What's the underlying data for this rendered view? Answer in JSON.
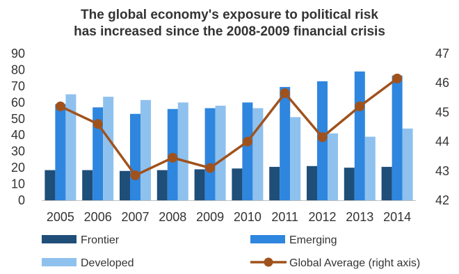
{
  "chart_data": {
    "type": "bar",
    "title_lines": [
      "The global economy's exposure to political risk",
      "has increased since the 2008-2009 financial crisis"
    ],
    "categories": [
      "2005",
      "2006",
      "2007",
      "2008",
      "2009",
      "2010",
      "2011",
      "2012",
      "2013",
      "2014"
    ],
    "ylim": [
      0,
      90
    ],
    "y_ticks": [
      "0",
      "10",
      "20",
      "30",
      "40",
      "50",
      "60",
      "70",
      "80",
      "90"
    ],
    "y2lim": [
      42,
      47
    ],
    "y2_ticks": [
      "42",
      "43",
      "44",
      "45",
      "46",
      "47"
    ],
    "grid": false,
    "legend_position": "bottom",
    "series": [
      {
        "name": "Frontier",
        "type": "bar",
        "color": "#1f4e79",
        "values": [
          18.5,
          18.5,
          18,
          18.5,
          19,
          19.5,
          20.5,
          21,
          20,
          20.5
        ]
      },
      {
        "name": "Emerging",
        "type": "bar",
        "color": "#2e86de",
        "values": [
          59,
          57,
          53,
          56,
          56.5,
          60,
          69.5,
          73,
          79,
          76.5
        ]
      },
      {
        "name": "Developed",
        "type": "bar",
        "color": "#8fc1ee",
        "values": [
          65,
          63.5,
          61.5,
          60,
          58,
          56.5,
          51,
          41,
          39,
          44
        ]
      },
      {
        "name": "Global Average (right axis)",
        "type": "line",
        "axis": "right",
        "color": "#a0521d",
        "values": [
          45.2,
          44.6,
          42.85,
          43.45,
          43.1,
          44.0,
          45.65,
          44.15,
          45.2,
          46.15
        ]
      }
    ]
  }
}
